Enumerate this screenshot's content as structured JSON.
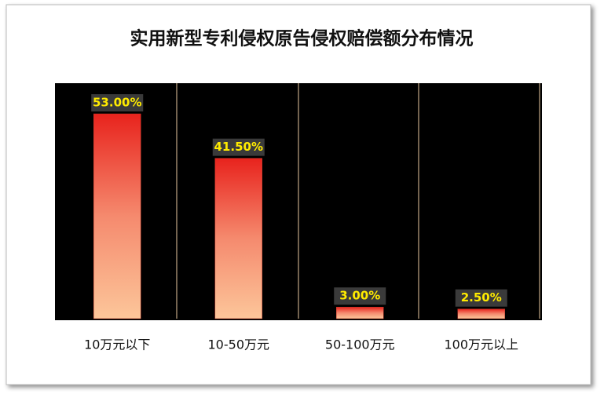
{
  "chart_data": {
    "type": "bar",
    "title": "实用新型专利侵权原告侵权赔偿额分布情况",
    "categories": [
      "10万元以下",
      "10-50万元",
      "50-100万元",
      "100万元以上"
    ],
    "values": [
      53,
      41.5,
      3,
      2.5
    ],
    "value_labels": [
      "53.00%",
      "41.50%",
      "3.00%",
      "2.50%"
    ]
  }
}
